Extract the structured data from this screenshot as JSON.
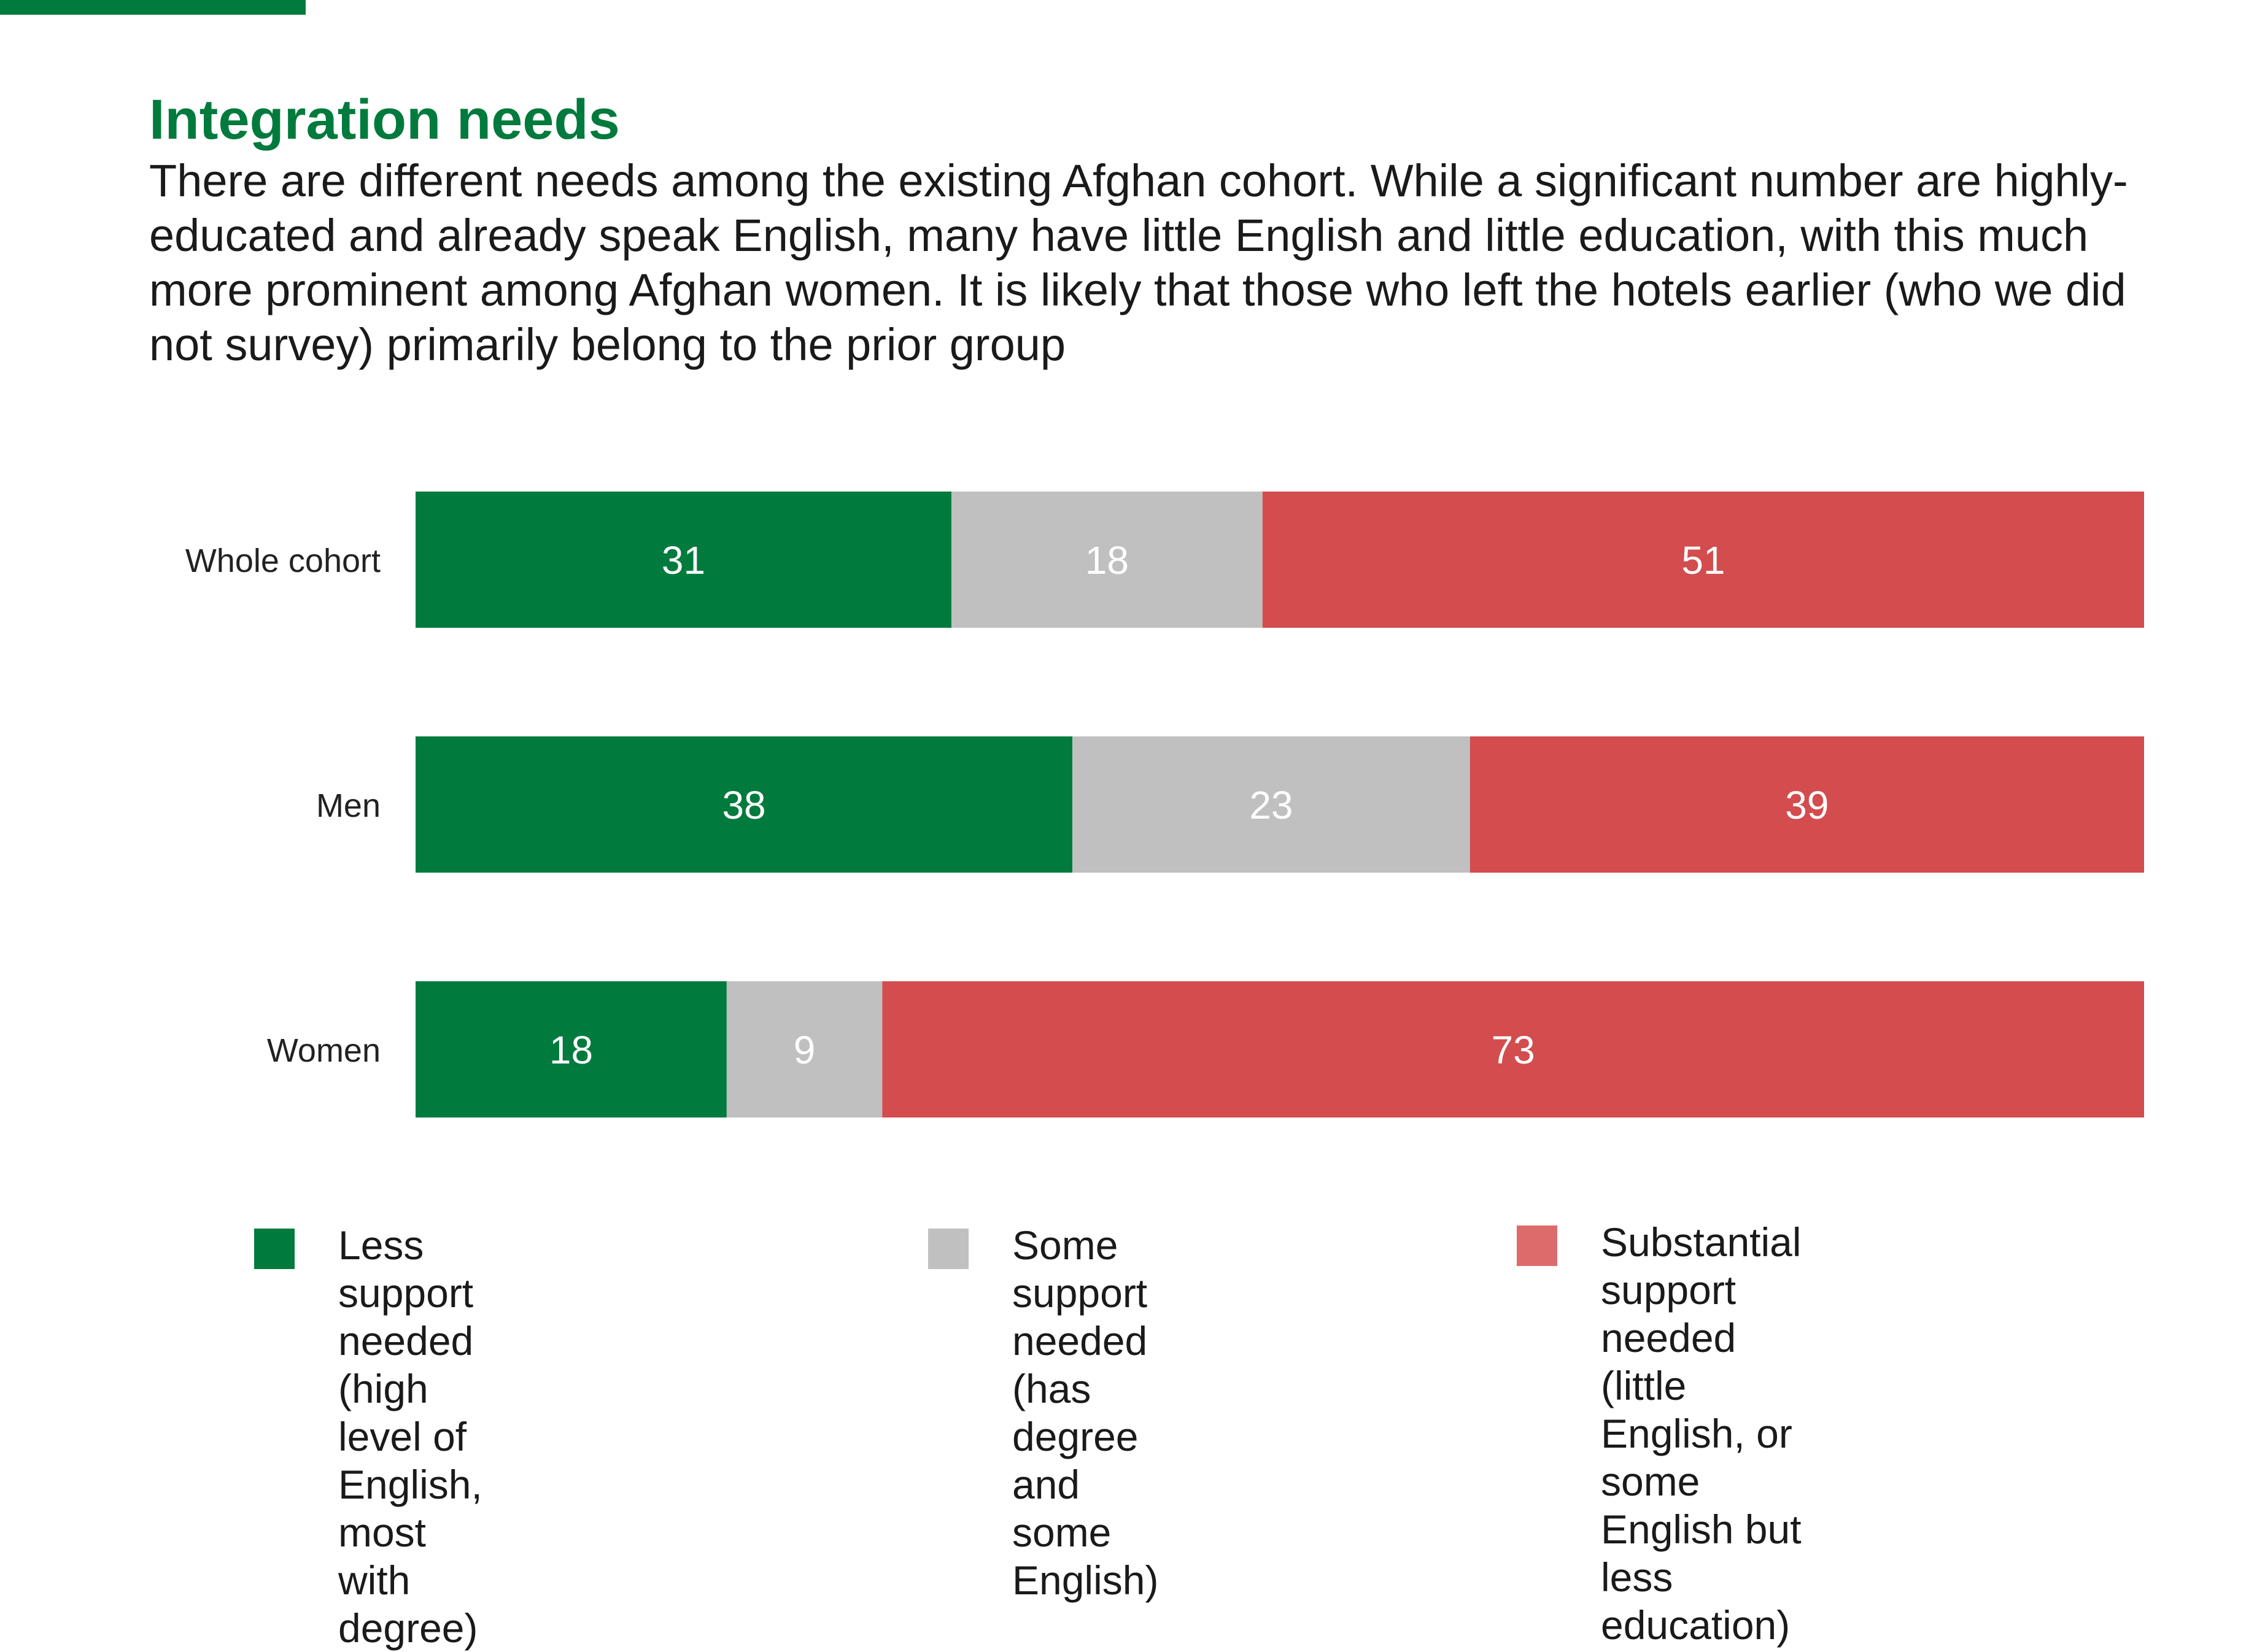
{
  "header": {
    "title": "Integration needs",
    "subtitle": "There are different needs among the existing Afghan cohort. While a significant number are highly-educated and already speak English, many have little English and little education, with this much more prominent among Afghan women. It is likely that those who left the hotels earlier (who we did not survey) primarily belong to the prior group"
  },
  "colors": {
    "accent": "#007a3d",
    "less": "#007a3d",
    "some": "#c0c0c0",
    "substantial": "#d34c4e",
    "legend_substantial": "#de6b6b"
  },
  "chart_data": {
    "type": "bar",
    "orientation": "horizontal",
    "stacked": true,
    "categories": [
      "Whole cohort",
      "Men",
      "Women"
    ],
    "series": [
      {
        "name": "Less support needed (high level of English, most with degree)",
        "values": [
          31,
          38,
          18
        ]
      },
      {
        "name": "Some support needed (has degree and some English)",
        "values": [
          18,
          23,
          9
        ]
      },
      {
        "name": "Substantial support needed (little English, or some English but less education)",
        "values": [
          51,
          39,
          73
        ]
      }
    ],
    "xlim": [
      0,
      100
    ],
    "grid": false,
    "legend_position": "bottom"
  },
  "legend": [
    {
      "label": "Less support needed\n(high level of English,\nmost with degree)"
    },
    {
      "label": "Some support\nneeded (has degree\nand some English)"
    },
    {
      "label": "Substantial support needed\n(little English, or some\nEnglish but less education)"
    }
  ]
}
